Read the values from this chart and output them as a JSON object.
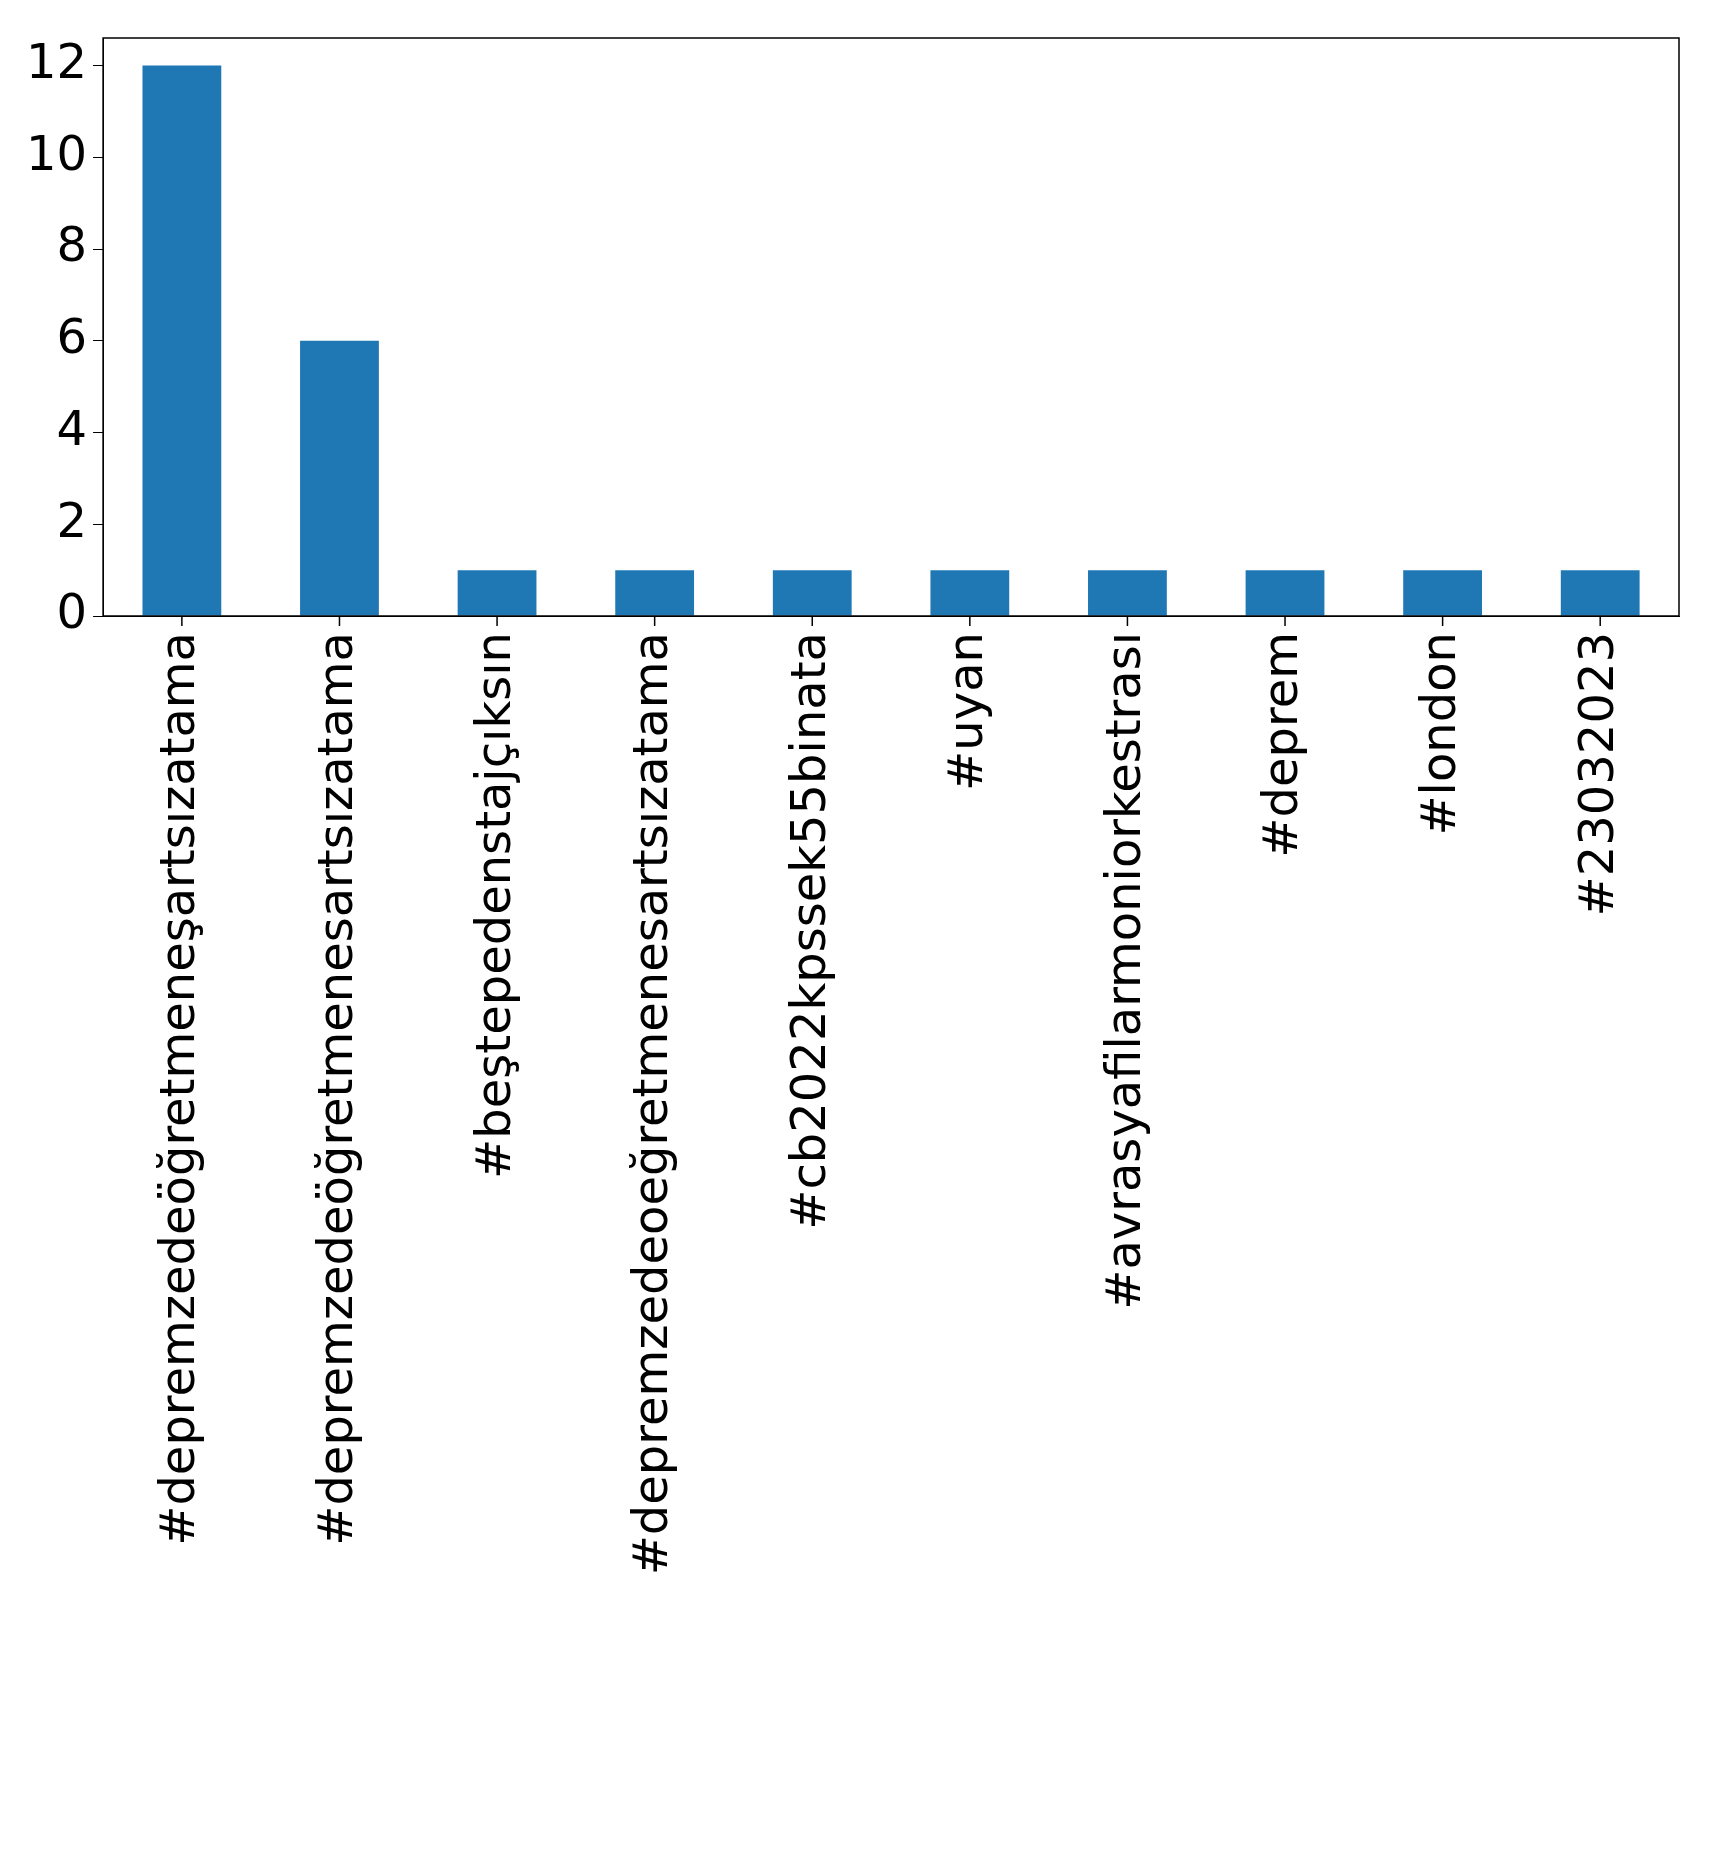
{
  "chart_data": {
    "type": "bar",
    "categories": [
      "#depremzedeöğretmeneşartsızatama",
      "#depremzedeöğretmenesartsızatama",
      "#beştepedenstajçıksın",
      "#depremzedeoeğretmenesartsızatama",
      "#cb2022kpssek55binata",
      "#uyan",
      "#avrasyafilarmoniorkestrası",
      "#deprem",
      "#london",
      "#23032023"
    ],
    "values": [
      12,
      6,
      1,
      1,
      1,
      1,
      1,
      1,
      1,
      1
    ],
    "color": "#1f77b4",
    "ylim": [
      0,
      12.6
    ],
    "yticks": [
      0,
      2,
      4,
      6,
      8,
      10,
      12
    ],
    "grid": false,
    "legend": false
  }
}
